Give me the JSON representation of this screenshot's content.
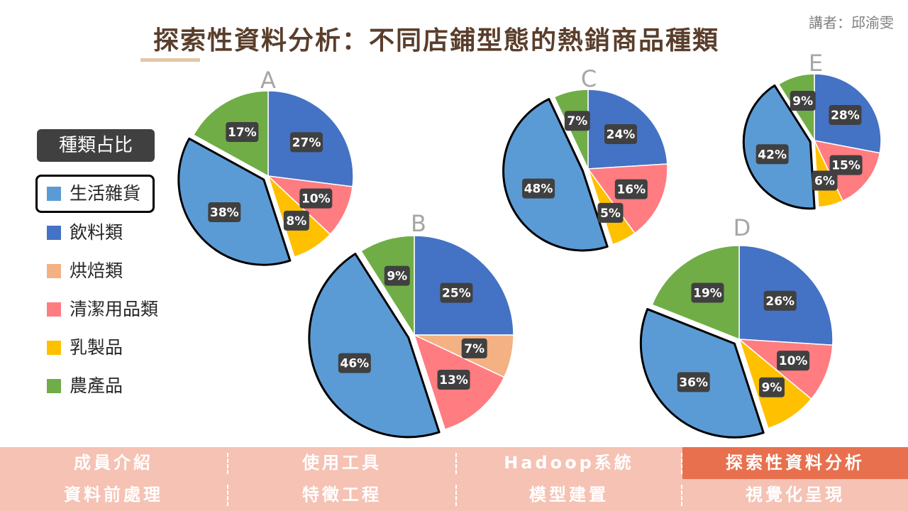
{
  "header": {
    "title": "探索性資料分析：不同店鋪型態的熱銷商品種類",
    "speaker": "講者：邱渝雯"
  },
  "legend": {
    "title": "種類占比",
    "items": [
      {
        "label": "生活雜貨",
        "color": "#5b9bd5"
      },
      {
        "label": "飲料類",
        "color": "#4472c4"
      },
      {
        "label": "烘焙類",
        "color": "#f4b183"
      },
      {
        "label": "清潔用品類",
        "color": "#ff7c80"
      },
      {
        "label": "乳製品",
        "color": "#ffc000"
      },
      {
        "label": "農產品",
        "color": "#70ad47"
      }
    ]
  },
  "chart_data": [
    {
      "type": "pie",
      "title": "A",
      "categories": [
        "飲料類",
        "清潔用品類",
        "乳製品",
        "生活雜貨",
        "農產品"
      ],
      "values": [
        27,
        10,
        8,
        38,
        17
      ],
      "exploded": "生活雜貨"
    },
    {
      "type": "pie",
      "title": "B",
      "categories": [
        "飲料類",
        "烘焙類",
        "清潔用品類",
        "生活雜貨",
        "農產品"
      ],
      "values": [
        25,
        7,
        13,
        46,
        9
      ],
      "exploded": "生活雜貨"
    },
    {
      "type": "pie",
      "title": "C",
      "categories": [
        "飲料類",
        "清潔用品類",
        "乳製品",
        "生活雜貨",
        "農產品"
      ],
      "values": [
        24,
        16,
        5,
        48,
        7
      ],
      "exploded": "生活雜貨"
    },
    {
      "type": "pie",
      "title": "D",
      "categories": [
        "飲料類",
        "清潔用品類",
        "乳製品",
        "生活雜貨",
        "農產品"
      ],
      "values": [
        26,
        10,
        9,
        36,
        19
      ],
      "exploded": "生活雜貨"
    },
    {
      "type": "pie",
      "title": "E",
      "categories": [
        "飲料類",
        "清潔用品類",
        "乳製品",
        "生活雜貨",
        "農產品"
      ],
      "values": [
        28,
        15,
        6,
        42,
        9
      ],
      "exploded": "生活雜貨"
    }
  ],
  "nav": {
    "row1": [
      {
        "label": "成員介紹",
        "active": false
      },
      {
        "label": "使用工具",
        "active": false
      },
      {
        "label": "Hadoop系統",
        "active": false
      },
      {
        "label": "探索性資料分析",
        "active": true
      }
    ],
    "row2": [
      {
        "label": "資料前處理",
        "active": false
      },
      {
        "label": "特徵工程",
        "active": false
      },
      {
        "label": "模型建置",
        "active": false
      },
      {
        "label": "視覺化呈現",
        "active": false
      }
    ]
  }
}
